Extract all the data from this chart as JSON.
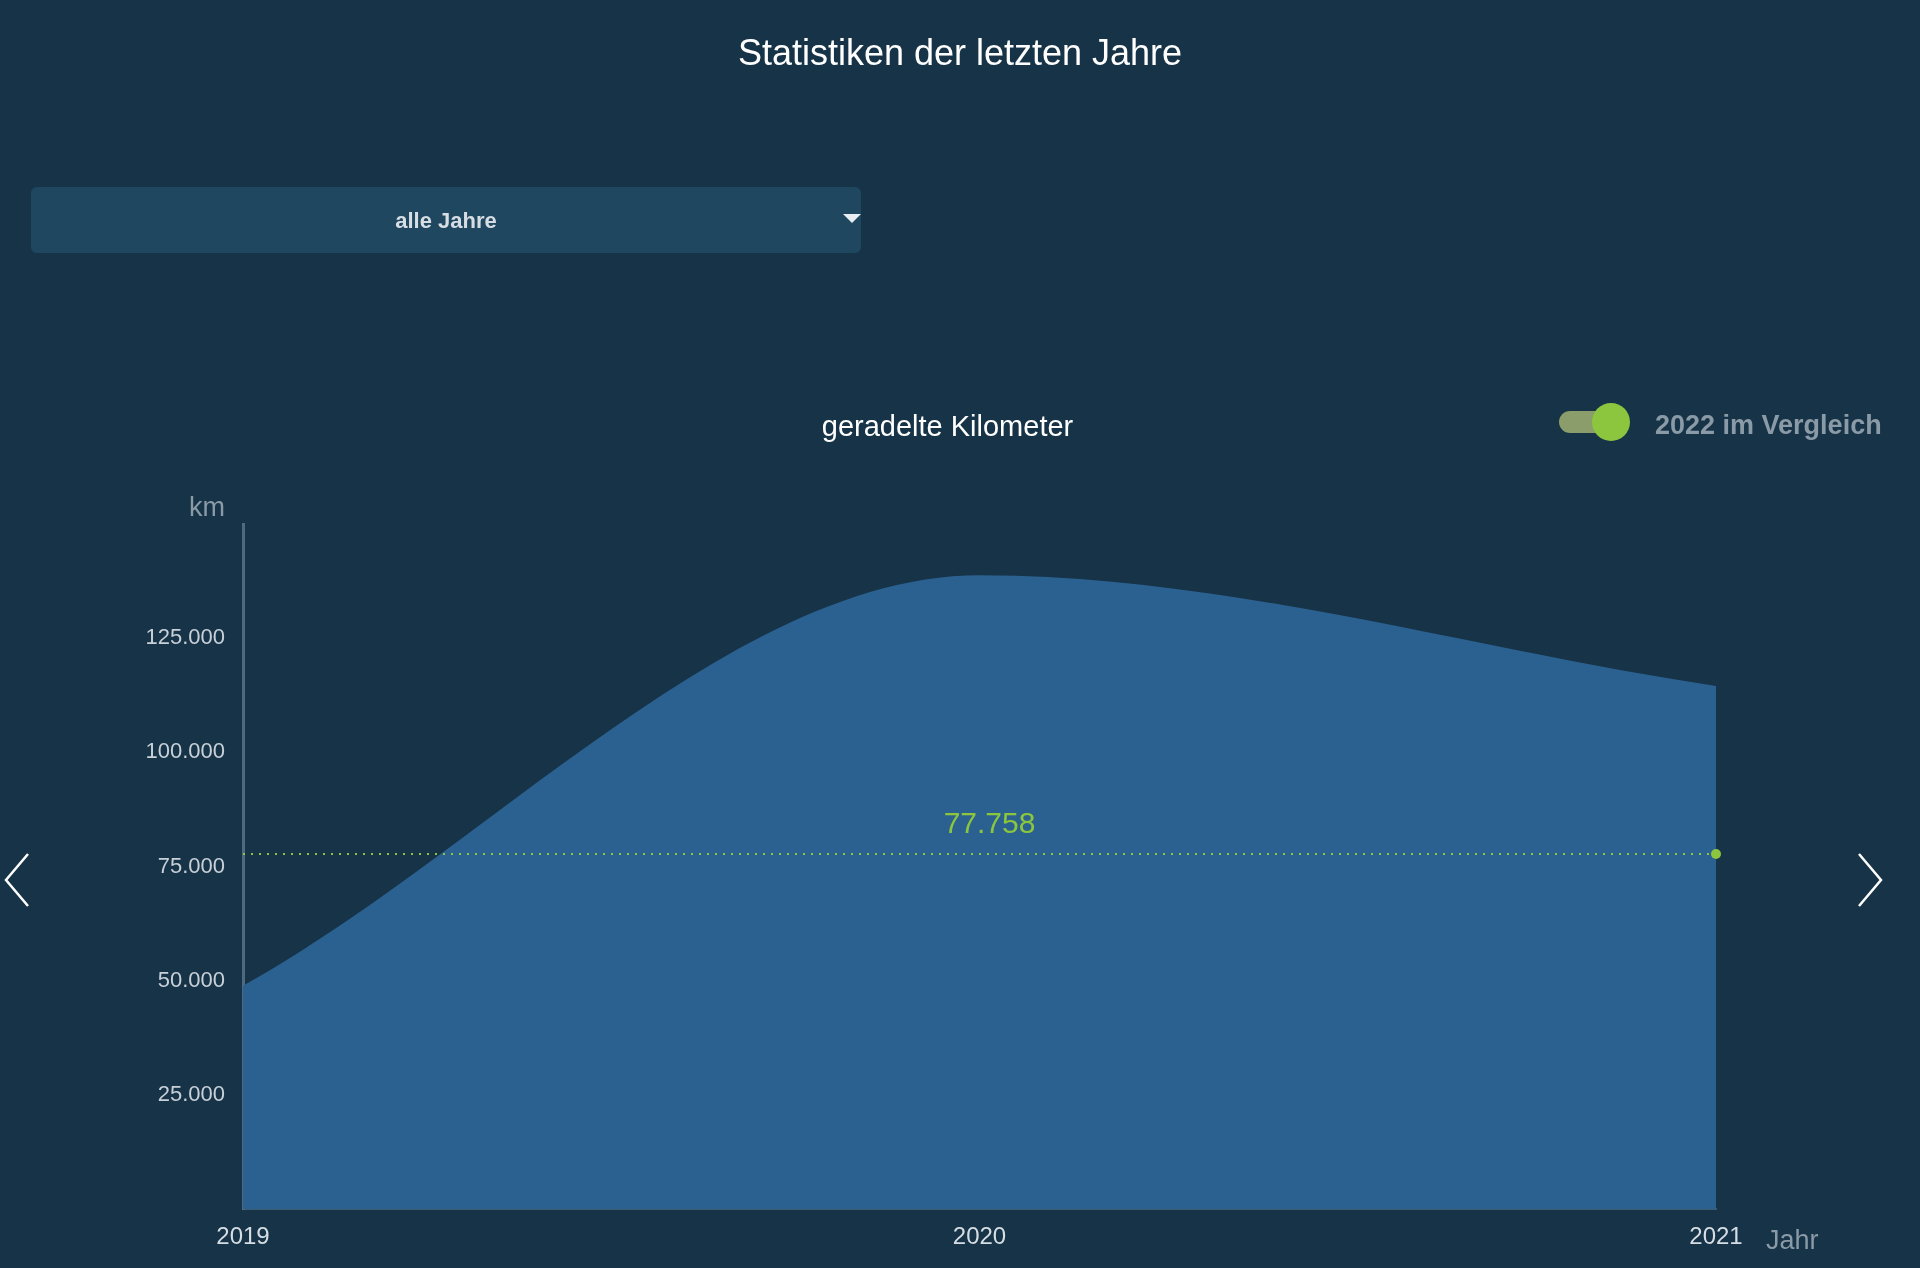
{
  "chart_data": {
    "type": "area",
    "title": "Statistiken der letzten Jahre",
    "subtitle": "geradelte Kilometer",
    "xlabel": "Jahr",
    "ylabel": "km",
    "categories": [
      "2019",
      "2020",
      "2021"
    ],
    "series": [
      {
        "color": "#2b6190",
        "values": [
          48900,
          138800,
          114500
        ]
      }
    ],
    "ylim": [
      0,
      150000
    ],
    "yticks": [
      {
        "value": 25000,
        "label": "25.000"
      },
      {
        "value": 50000,
        "label": "50.000"
      },
      {
        "value": 75000,
        "label": "75.000"
      },
      {
        "value": 100000,
        "label": "100.000"
      },
      {
        "value": 125000,
        "label": "125.000"
      }
    ],
    "ref_lines": [
      {
        "axis": "y",
        "value": 77758,
        "label": "77.758",
        "color": "#8cc63f",
        "line_style": "dotted"
      }
    ],
    "annotations": [
      "alle Jahre",
      "2022 im Vergleich"
    ],
    "grid": false,
    "legend": false,
    "marker": "none"
  }
}
